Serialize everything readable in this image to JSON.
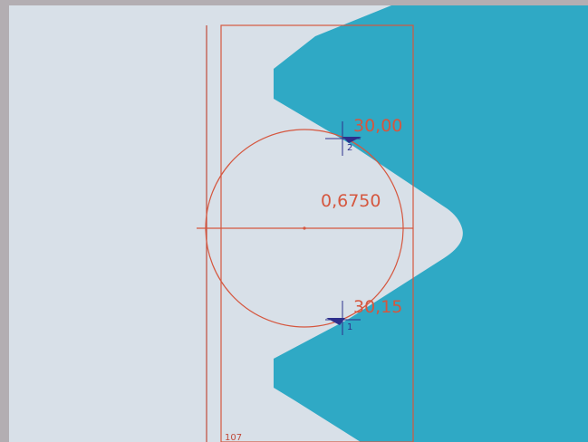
{
  "colors": {
    "outer_border": "#b3aeb2",
    "background": "#d8e0e8",
    "part_fill": "#2fa9c5",
    "overlay": "#d5573f",
    "marker": "#2d2f8c",
    "vertical_guide": "#c04a3a"
  },
  "measurement": {
    "diameter": "0,6750",
    "marker_top": {
      "value": "30,00",
      "index": "2",
      "icon": "crosshair-icon"
    },
    "marker_bottom": {
      "value": "30,15",
      "index": "1",
      "icon": "crosshair-icon"
    },
    "frame_id": "107"
  }
}
